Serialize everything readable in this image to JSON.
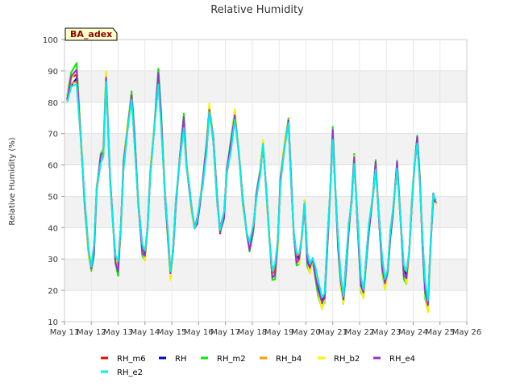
{
  "chart_data": {
    "type": "line",
    "title": "Relative Humidity",
    "xlabel": "",
    "ylabel": "Relative Humidity (%)",
    "badge": "BA_adex",
    "xlim": [
      11,
      26
    ],
    "ylim": [
      10,
      100
    ],
    "yticks": [
      10,
      20,
      30,
      40,
      50,
      60,
      70,
      80,
      90,
      100
    ],
    "xticks": [
      {
        "v": 11,
        "label": "May 11"
      },
      {
        "v": 12,
        "label": "May 12"
      },
      {
        "v": 13,
        "label": "May 13"
      },
      {
        "v": 14,
        "label": "May 14"
      },
      {
        "v": 15,
        "label": "May 15"
      },
      {
        "v": 16,
        "label": "May 16"
      },
      {
        "v": 17,
        "label": "May 17"
      },
      {
        "v": 18,
        "label": "May 18"
      },
      {
        "v": 19,
        "label": "May 19"
      },
      {
        "v": 20,
        "label": "May 20"
      },
      {
        "v": 21,
        "label": "May 21"
      },
      {
        "v": 22,
        "label": "May 22"
      },
      {
        "v": 23,
        "label": "May 23"
      },
      {
        "v": 24,
        "label": "May 24"
      },
      {
        "v": 25,
        "label": "May 25"
      },
      {
        "v": 26,
        "label": "May 26"
      }
    ],
    "grid": true,
    "legend_position": "bottom",
    "series": [
      {
        "name": "RH_m6",
        "color": "#ff0000",
        "offset": 0.0
      },
      {
        "name": "RH",
        "color": "#0000cc",
        "offset": -0.8
      },
      {
        "name": "RH_m2",
        "color": "#00ee00",
        "offset": 2.2
      },
      {
        "name": "RH_b4",
        "color": "#ff9900",
        "offset": -1.5
      },
      {
        "name": "RH_b2",
        "color": "#ffee00",
        "offset": 1.2
      },
      {
        "name": "RH_e4",
        "color": "#9933cc",
        "offset": 0.6
      },
      {
        "name": "RH_e2",
        "color": "#00eeee",
        "offset": -2.0
      }
    ],
    "base_profile": [
      [
        11.1,
        81
      ],
      [
        11.25,
        87
      ],
      [
        11.45,
        89
      ],
      [
        11.6,
        70
      ],
      [
        11.75,
        48
      ],
      [
        11.9,
        32
      ],
      [
        12.0,
        27
      ],
      [
        12.1,
        33
      ],
      [
        12.2,
        52
      ],
      [
        12.35,
        62
      ],
      [
        12.45,
        64
      ],
      [
        12.55,
        88
      ],
      [
        12.7,
        55
      ],
      [
        12.8,
        42
      ],
      [
        12.9,
        30
      ],
      [
        13.0,
        27
      ],
      [
        13.1,
        40
      ],
      [
        13.2,
        60
      ],
      [
        13.35,
        72
      ],
      [
        13.5,
        82
      ],
      [
        13.6,
        70
      ],
      [
        13.75,
        48
      ],
      [
        13.9,
        33
      ],
      [
        14.0,
        31
      ],
      [
        14.1,
        40
      ],
      [
        14.2,
        58
      ],
      [
        14.35,
        72
      ],
      [
        14.5,
        88
      ],
      [
        14.6,
        75
      ],
      [
        14.75,
        50
      ],
      [
        14.85,
        38
      ],
      [
        14.95,
        25
      ],
      [
        15.05,
        33
      ],
      [
        15.15,
        48
      ],
      [
        15.3,
        62
      ],
      [
        15.45,
        74
      ],
      [
        15.55,
        60
      ],
      [
        15.65,
        53
      ],
      [
        15.75,
        45
      ],
      [
        15.85,
        40
      ],
      [
        15.95,
        42
      ],
      [
        16.05,
        48
      ],
      [
        16.15,
        54
      ],
      [
        16.3,
        66
      ],
      [
        16.4,
        78
      ],
      [
        16.55,
        68
      ],
      [
        16.7,
        48
      ],
      [
        16.8,
        39
      ],
      [
        16.95,
        44
      ],
      [
        17.05,
        58
      ],
      [
        17.2,
        66
      ],
      [
        17.35,
        76
      ],
      [
        17.5,
        64
      ],
      [
        17.65,
        48
      ],
      [
        17.8,
        38
      ],
      [
        17.9,
        34
      ],
      [
        18.05,
        40
      ],
      [
        18.15,
        50
      ],
      [
        18.3,
        58
      ],
      [
        18.4,
        67
      ],
      [
        18.55,
        48
      ],
      [
        18.65,
        35
      ],
      [
        18.75,
        25
      ],
      [
        18.85,
        26
      ],
      [
        18.95,
        35
      ],
      [
        19.05,
        55
      ],
      [
        19.2,
        66
      ],
      [
        19.35,
        74
      ],
      [
        19.45,
        55
      ],
      [
        19.55,
        38
      ],
      [
        19.65,
        30
      ],
      [
        19.75,
        30
      ],
      [
        19.85,
        37
      ],
      [
        19.95,
        48
      ],
      [
        20.05,
        30
      ],
      [
        20.15,
        27
      ],
      [
        20.25,
        30
      ],
      [
        20.35,
        26
      ],
      [
        20.45,
        21
      ],
      [
        20.6,
        16
      ],
      [
        20.7,
        18
      ],
      [
        20.8,
        35
      ],
      [
        20.9,
        50
      ],
      [
        21.0,
        70
      ],
      [
        21.1,
        52
      ],
      [
        21.2,
        35
      ],
      [
        21.3,
        23
      ],
      [
        21.4,
        17
      ],
      [
        21.5,
        28
      ],
      [
        21.6,
        40
      ],
      [
        21.7,
        48
      ],
      [
        21.8,
        62
      ],
      [
        21.95,
        38
      ],
      [
        22.05,
        22
      ],
      [
        22.15,
        19
      ],
      [
        22.25,
        30
      ],
      [
        22.35,
        40
      ],
      [
        22.5,
        50
      ],
      [
        22.6,
        60
      ],
      [
        22.75,
        40
      ],
      [
        22.85,
        28
      ],
      [
        22.95,
        22
      ],
      [
        23.05,
        26
      ],
      [
        23.15,
        38
      ],
      [
        23.25,
        45
      ],
      [
        23.4,
        60
      ],
      [
        23.55,
        40
      ],
      [
        23.65,
        26
      ],
      [
        23.75,
        24
      ],
      [
        23.85,
        32
      ],
      [
        23.95,
        48
      ],
      [
        24.05,
        60
      ],
      [
        24.15,
        68
      ],
      [
        24.25,
        55
      ],
      [
        24.35,
        35
      ],
      [
        24.45,
        20
      ],
      [
        24.55,
        15
      ],
      [
        24.65,
        35
      ],
      [
        24.75,
        50
      ],
      [
        24.85,
        48
      ]
    ]
  }
}
